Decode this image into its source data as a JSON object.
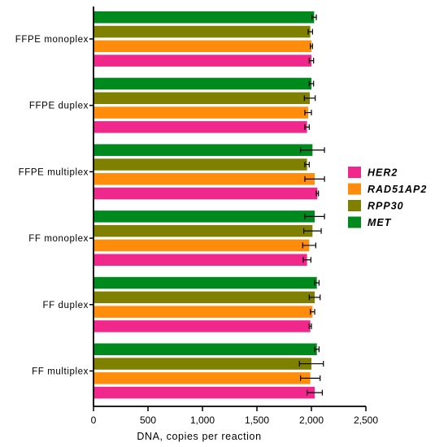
{
  "chart_data": {
    "type": "bar",
    "orientation": "horizontal",
    "title": "",
    "xlabel": "DNA, copies per reaction",
    "ylabel": "",
    "xlim": [
      0,
      2500
    ],
    "xticks": [
      0,
      500,
      1000,
      1500,
      2000,
      2500
    ],
    "xtick_labels": [
      "0",
      "500",
      "1,000",
      "1,500",
      "2,000",
      "2,500"
    ],
    "grid": false,
    "legend_position": "right",
    "categories": [
      "FFPE monoplex",
      "FFPE duplex",
      "FFPE multiplex",
      "FF monoplex",
      "FF duplex",
      "FF multiplex"
    ],
    "series": [
      {
        "name": "HER2",
        "color": "#f0288c",
        "values": [
          2000,
          1960,
          2055,
          1960,
          1990,
          2030
        ],
        "errors": [
          20,
          20,
          10,
          35,
          10,
          70
        ]
      },
      {
        "name": "RAD51AP2",
        "color": "#ff8c0a",
        "values": [
          2000,
          1970,
          2030,
          1980,
          2010,
          1990
        ],
        "errors": [
          10,
          30,
          90,
          60,
          20,
          90
        ]
      },
      {
        "name": "RPP30",
        "color": "#808000",
        "values": [
          1990,
          1985,
          1960,
          2010,
          2030,
          2000
        ],
        "errors": [
          20,
          50,
          20,
          80,
          50,
          110
        ]
      },
      {
        "name": "MET",
        "color": "#008a1e",
        "values": [
          2025,
          2000,
          2010,
          2030,
          2050,
          2050
        ],
        "errors": [
          20,
          20,
          110,
          90,
          20,
          20
        ]
      }
    ]
  }
}
